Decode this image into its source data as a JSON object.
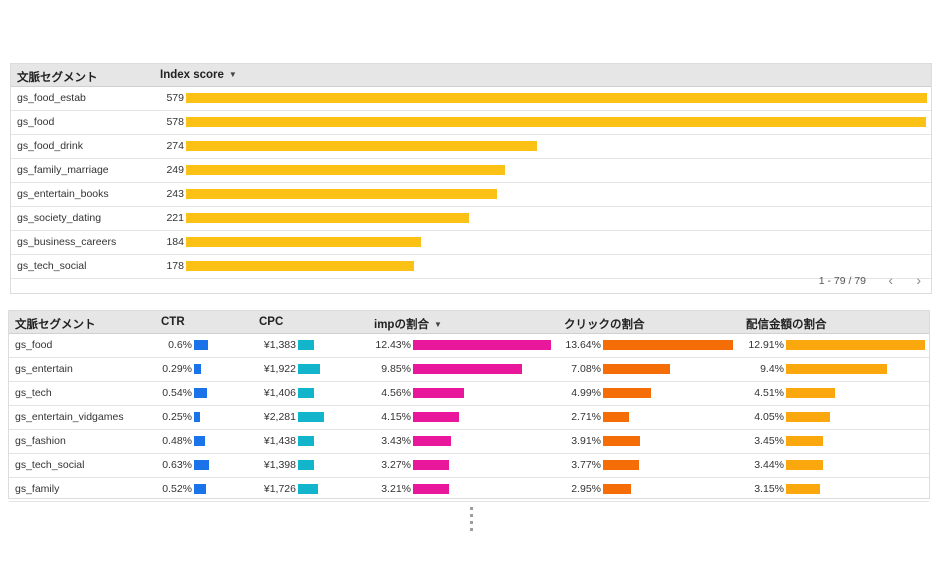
{
  "colors": {
    "index_bar": "#fbc115",
    "ctr": "#1a73e8",
    "cpc": "#12b5cb",
    "imp": "#e8179b",
    "click": "#f46d06",
    "spend": "#fba80f"
  },
  "table1": {
    "headers": {
      "segment": "文脈セグメント",
      "score": "Index score"
    },
    "max": 579,
    "rows": [
      {
        "name": "gs_food_estab",
        "score": 579
      },
      {
        "name": "gs_food",
        "score": 578
      },
      {
        "name": "gs_food_drink",
        "score": 274
      },
      {
        "name": "gs_family_marriage",
        "score": 249
      },
      {
        "name": "gs_entertain_books",
        "score": 243
      },
      {
        "name": "gs_society_dating",
        "score": 221
      },
      {
        "name": "gs_business_careers",
        "score": 184
      },
      {
        "name": "gs_tech_social",
        "score": 178
      }
    ],
    "pager": "1 - 79 / 79"
  },
  "table2": {
    "headers": {
      "segment": "文脈セグメント",
      "ctr": "CTR",
      "cpc": "CPC",
      "imp": "impの割合",
      "click": "クリックの割合",
      "spend": "配信金額の割合"
    },
    "rows": [
      {
        "name": "gs_food",
        "ctr": "0.6%",
        "ctr_v": 0.6,
        "cpc": "¥1,383",
        "cpc_v": 1383,
        "imp": "12.43%",
        "imp_v": 12.43,
        "click": "13.64%",
        "click_v": 13.64,
        "spend": "12.91%",
        "spend_v": 12.91
      },
      {
        "name": "gs_entertain",
        "ctr": "0.29%",
        "ctr_v": 0.29,
        "cpc": "¥1,922",
        "cpc_v": 1922,
        "imp": "9.85%",
        "imp_v": 9.85,
        "click": "7.08%",
        "click_v": 7.08,
        "spend": "9.4%",
        "spend_v": 9.4
      },
      {
        "name": "gs_tech",
        "ctr": "0.54%",
        "ctr_v": 0.54,
        "cpc": "¥1,406",
        "cpc_v": 1406,
        "imp": "4.56%",
        "imp_v": 4.56,
        "click": "4.99%",
        "click_v": 4.99,
        "spend": "4.51%",
        "spend_v": 4.51
      },
      {
        "name": "gs_entertain_vidgames",
        "ctr": "0.25%",
        "ctr_v": 0.25,
        "cpc": "¥2,281",
        "cpc_v": 2281,
        "imp": "4.15%",
        "imp_v": 4.15,
        "click": "2.71%",
        "click_v": 2.71,
        "spend": "4.05%",
        "spend_v": 4.05
      },
      {
        "name": "gs_fashion",
        "ctr": "0.48%",
        "ctr_v": 0.48,
        "cpc": "¥1,438",
        "cpc_v": 1438,
        "imp": "3.43%",
        "imp_v": 3.43,
        "click": "3.91%",
        "click_v": 3.91,
        "spend": "3.45%",
        "spend_v": 3.45
      },
      {
        "name": "gs_tech_social",
        "ctr": "0.63%",
        "ctr_v": 0.63,
        "cpc": "¥1,398",
        "cpc_v": 1398,
        "imp": "3.27%",
        "imp_v": 3.27,
        "click": "3.77%",
        "click_v": 3.77,
        "spend": "3.44%",
        "spend_v": 3.44
      },
      {
        "name": "gs_family",
        "ctr": "0.52%",
        "ctr_v": 0.52,
        "cpc": "¥1,726",
        "cpc_v": 1726,
        "imp": "3.21%",
        "imp_v": 3.21,
        "click": "2.95%",
        "click_v": 2.95,
        "spend": "3.15%",
        "spend_v": 3.15
      }
    ]
  }
}
